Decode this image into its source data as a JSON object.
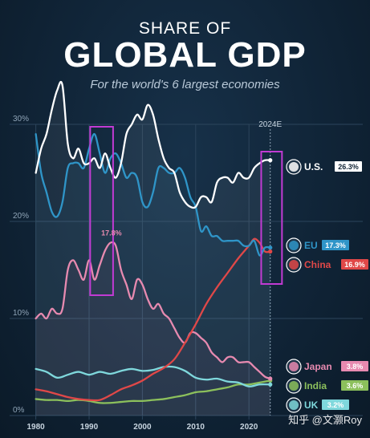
{
  "header": {
    "kicker": "SHARE OF",
    "title": "GLOBAL GDP",
    "subtitle": "For the world's 6 largest economies"
  },
  "watermark": "知乎 @文灏Roy",
  "chart_data": {
    "type": "line",
    "title": "SHARE OF GLOBAL GDP",
    "subtitle": "For the world's 6 largest economies",
    "xlim": [
      1979,
      2026
    ],
    "ylim": [
      0,
      30
    ],
    "x_ticks": [
      "1980",
      "1990",
      "2000",
      "2010",
      "2020"
    ],
    "y_ticks": [
      "0%",
      "10%",
      "20%",
      "30%"
    ],
    "projection_label": "2024E",
    "grid": true,
    "annotations": [
      {
        "text": "17.8%",
        "x": 1994.5,
        "y": 17.8,
        "series": "Japan"
      }
    ],
    "highlights": [
      {
        "x_start": 1990.2,
        "x_end": 1994.5,
        "color": "#c13bd3"
      },
      {
        "x_start": 2022.3,
        "x_end": 2026.2,
        "color": "#c13bd3"
      }
    ],
    "series": [
      {
        "name": "U.S.",
        "value_label": "26.3%",
        "color": "#ffffff",
        "badge_color": "#ffffff",
        "x": [
          1980,
          1981,
          1982,
          1983,
          1984,
          1985,
          1986,
          1987,
          1988,
          1989,
          1990,
          1991,
          1992,
          1993,
          1994,
          1995,
          1996,
          1997,
          1998,
          1999,
          2000,
          2001,
          2002,
          2003,
          2004,
          2005,
          2006,
          2007,
          2008,
          2009,
          2010,
          2011,
          2012,
          2013,
          2014,
          2015,
          2016,
          2017,
          2018,
          2019,
          2020,
          2021,
          2022,
          2023,
          2024
        ],
        "y": [
          25.0,
          27.5,
          29.0,
          31.5,
          33.5,
          34.0,
          28.0,
          26.5,
          27.5,
          26.0,
          26.0,
          26.5,
          25.5,
          27.0,
          25.5,
          24.5,
          26.0,
          29.0,
          30.0,
          31.0,
          30.5,
          32.0,
          31.0,
          28.5,
          26.5,
          25.5,
          25.0,
          23.0,
          22.0,
          21.5,
          21.5,
          22.5,
          22.5,
          22.0,
          24.0,
          24.5,
          24.5,
          24.0,
          25.0,
          24.5,
          24.5,
          25.5,
          26.0,
          26.3,
          26.3
        ]
      },
      {
        "name": "EU",
        "value_label": "17.3%",
        "color": "#2f95c8",
        "badge_color": "#2f95c8",
        "x": [
          1980,
          1981,
          1982,
          1983,
          1984,
          1985,
          1986,
          1987,
          1988,
          1989,
          1990,
          1991,
          1992,
          1993,
          1994,
          1995,
          1996,
          1997,
          1998,
          1999,
          2000,
          2001,
          2002,
          2003,
          2004,
          2005,
          2006,
          2007,
          2008,
          2009,
          2010,
          2011,
          2012,
          2013,
          2014,
          2015,
          2016,
          2017,
          2018,
          2019,
          2020,
          2021,
          2022,
          2023,
          2024
        ],
        "y": [
          29.0,
          25.0,
          23.0,
          21.0,
          20.5,
          22.0,
          25.5,
          26.0,
          26.0,
          25.5,
          27.5,
          29.0,
          27.0,
          25.0,
          26.5,
          27.0,
          26.0,
          24.5,
          25.0,
          24.5,
          22.0,
          21.5,
          23.0,
          25.5,
          25.5,
          25.0,
          25.0,
          25.5,
          24.5,
          22.5,
          21.5,
          19.0,
          19.5,
          18.5,
          18.5,
          18.0,
          18.0,
          18.0,
          18.0,
          17.5,
          17.5,
          18.0,
          16.5,
          17.3,
          17.3
        ]
      },
      {
        "name": "China",
        "value_label": "16.9%",
        "color": "#e04848",
        "badge_color": "#e04848",
        "x": [
          1980,
          1982,
          1984,
          1986,
          1988,
          1990,
          1992,
          1994,
          1996,
          1998,
          2000,
          2002,
          2004,
          2006,
          2008,
          2010,
          2012,
          2014,
          2016,
          2018,
          2020,
          2021,
          2022,
          2023,
          2024
        ],
        "y": [
          2.7,
          2.5,
          2.2,
          1.9,
          1.7,
          1.6,
          1.6,
          2.1,
          2.7,
          3.1,
          3.6,
          4.3,
          4.9,
          5.8,
          7.5,
          9.4,
          11.5,
          13.2,
          14.7,
          16.2,
          17.5,
          18.2,
          17.8,
          16.9,
          16.9
        ]
      },
      {
        "name": "Japan",
        "value_label": "3.8%",
        "color": "#e78ab0",
        "badge_color": "#e78ab0",
        "x": [
          1980,
          1981,
          1982,
          1983,
          1984,
          1985,
          1986,
          1987,
          1988,
          1989,
          1990,
          1991,
          1992,
          1993,
          1994,
          1995,
          1996,
          1997,
          1998,
          1999,
          2000,
          2001,
          2002,
          2003,
          2004,
          2005,
          2006,
          2007,
          2008,
          2009,
          2010,
          2011,
          2012,
          2013,
          2014,
          2015,
          2016,
          2017,
          2018,
          2019,
          2020,
          2021,
          2022,
          2023,
          2024
        ],
        "y": [
          10.0,
          10.5,
          10.0,
          11.0,
          10.5,
          11.0,
          15.0,
          16.0,
          15.0,
          14.0,
          16.0,
          14.0,
          15.5,
          17.0,
          17.8,
          17.5,
          15.0,
          13.5,
          12.0,
          14.0,
          13.5,
          12.0,
          11.0,
          11.5,
          10.5,
          10.0,
          9.0,
          8.0,
          7.5,
          8.5,
          8.5,
          8.0,
          7.5,
          6.5,
          6.0,
          5.5,
          6.0,
          6.0,
          5.5,
          5.5,
          5.5,
          5.0,
          4.5,
          4.0,
          3.8
        ]
      },
      {
        "name": "India",
        "value_label": "3.6%",
        "color": "#8cc05c",
        "badge_color": "#8cc05c",
        "x": [
          1980,
          1982,
          1984,
          1986,
          1988,
          1990,
          1992,
          1994,
          1996,
          1998,
          2000,
          2002,
          2004,
          2006,
          2008,
          2010,
          2012,
          2014,
          2016,
          2018,
          2020,
          2022,
          2024
        ],
        "y": [
          1.7,
          1.6,
          1.6,
          1.5,
          1.6,
          1.5,
          1.3,
          1.3,
          1.4,
          1.5,
          1.5,
          1.6,
          1.7,
          1.9,
          2.1,
          2.4,
          2.5,
          2.7,
          2.9,
          3.2,
          3.2,
          3.4,
          3.6
        ]
      },
      {
        "name": "UK",
        "value_label": "3.2%",
        "color": "#7fd8dc",
        "badge_color": "#7fd8dc",
        "x": [
          1980,
          1982,
          1984,
          1986,
          1988,
          1990,
          1992,
          1994,
          1996,
          1998,
          2000,
          2002,
          2004,
          2006,
          2008,
          2010,
          2012,
          2014,
          2016,
          2018,
          2020,
          2022,
          2024
        ],
        "y": [
          4.8,
          4.5,
          3.9,
          4.2,
          4.5,
          4.2,
          4.5,
          4.3,
          4.6,
          4.8,
          4.6,
          4.7,
          5.0,
          5.0,
          4.6,
          3.9,
          3.7,
          3.8,
          3.5,
          3.4,
          3.0,
          3.2,
          3.2
        ]
      }
    ]
  }
}
